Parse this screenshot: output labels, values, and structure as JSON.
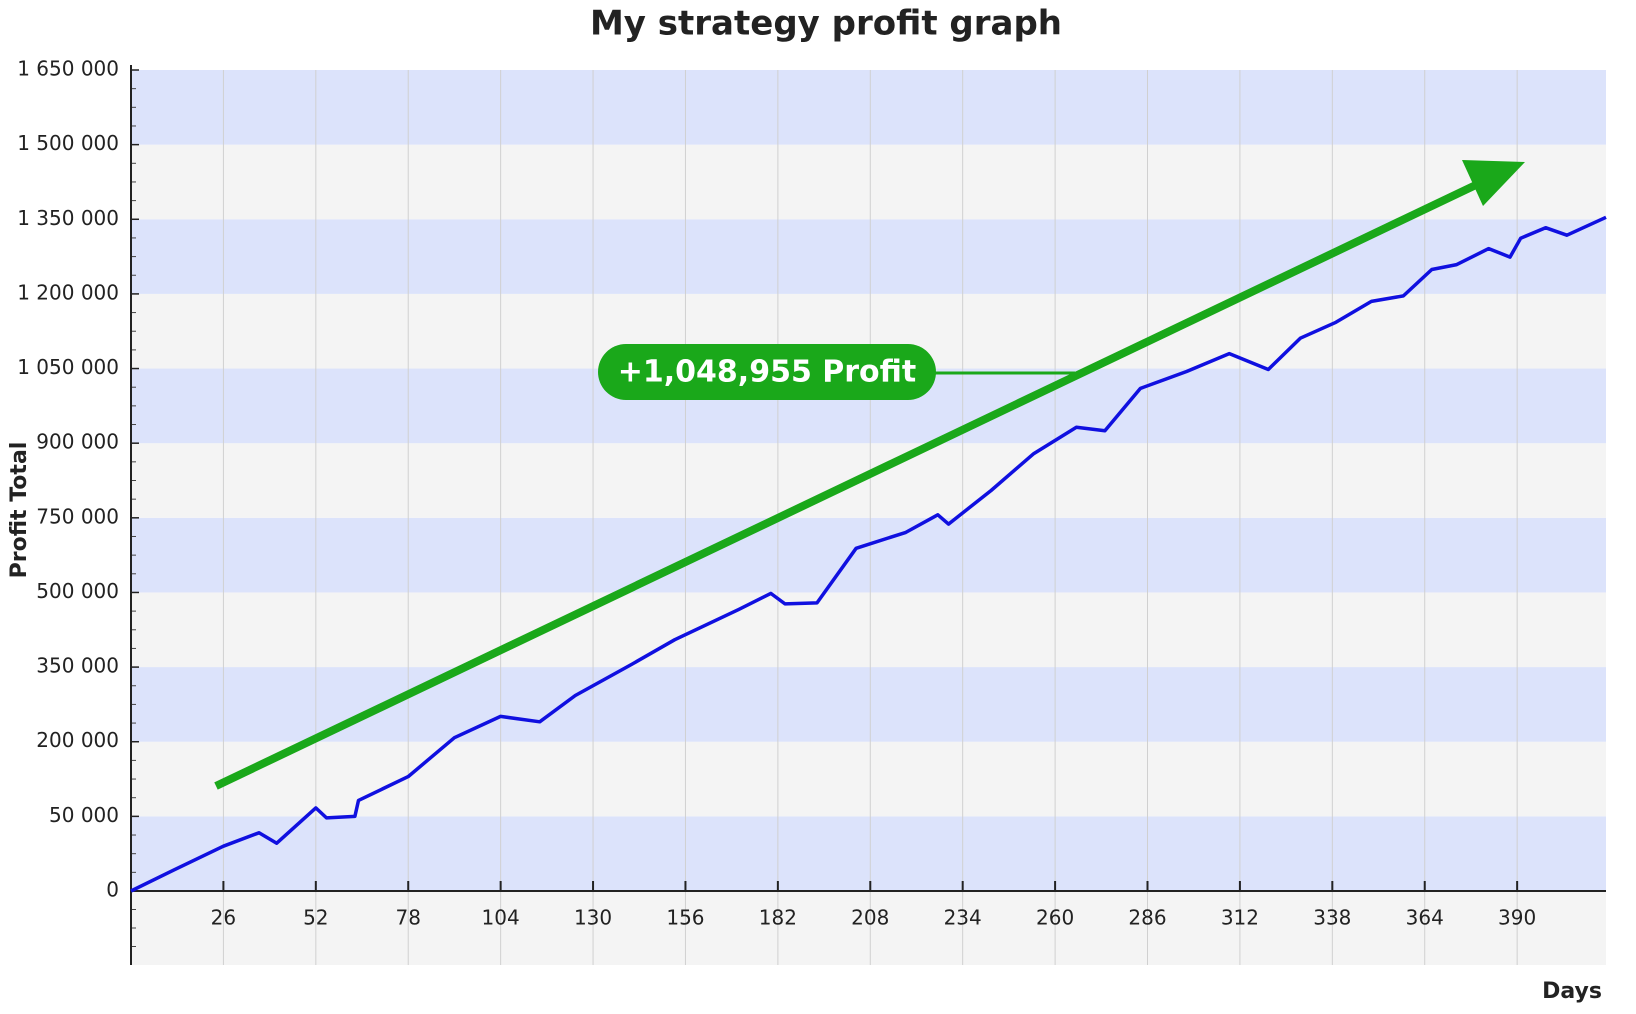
{
  "chart_data": {
    "type": "line",
    "title": "My strategy profit graph",
    "x_label": "Days",
    "y_label": "Profit Total",
    "annotation": "+1,048,955 Profit",
    "color": "#1010e0",
    "x": [
      0,
      12,
      26,
      36,
      41,
      52,
      55,
      63,
      64,
      78,
      91,
      104,
      115,
      125,
      141,
      153,
      171,
      180,
      184,
      193,
      204,
      218,
      227,
      230,
      242,
      254,
      266,
      274,
      284,
      297,
      309,
      320,
      329,
      339,
      349,
      358,
      366,
      373,
      382,
      388,
      391,
      398,
      404,
      415
    ],
    "values": [
      0,
      14000,
      30000,
      39000,
      32000,
      67000,
      49000,
      50000,
      82000,
      130000,
      208000,
      251000,
      240000,
      293000,
      356000,
      405000,
      466000,
      498000,
      477000,
      479000,
      648000,
      701000,
      756000,
      729000,
      805000,
      879000,
      932000,
      925000,
      1010000,
      1044000,
      1080000,
      1048000,
      1111000,
      1143000,
      1185000,
      1196000,
      1249000,
      1259000,
      1291000,
      1274000,
      1312000,
      1333000,
      1318000,
      1354000
    ],
    "xlim": [
      0,
      415
    ],
    "xticks": [
      26,
      52,
      78,
      104,
      130,
      156,
      182,
      208,
      234,
      260,
      286,
      312,
      338,
      364,
      390
    ],
    "ylim": [
      0,
      1650000
    ],
    "yticks": [
      0,
      {
        "value": 50000,
        "label": "50 000"
      },
      {
        "value": 200000,
        "label": "200 000"
      },
      {
        "value": 350000,
        "label": "350 000"
      },
      {
        "value": 500000,
        "label": "500 000"
      },
      {
        "value": 750000,
        "label": "750 000"
      },
      {
        "value": 900000,
        "label": "900 000"
      },
      {
        "value": 1050000,
        "label": "1 050 000"
      },
      {
        "value": 1200000,
        "label": "1 200 000"
      },
      {
        "value": 1350000,
        "label": "1 350 000"
      },
      {
        "value": 1500000,
        "label": "1 500 000"
      },
      {
        "value": 1650000,
        "label": "1 650 000"
      }
    ],
    "grid": true
  }
}
